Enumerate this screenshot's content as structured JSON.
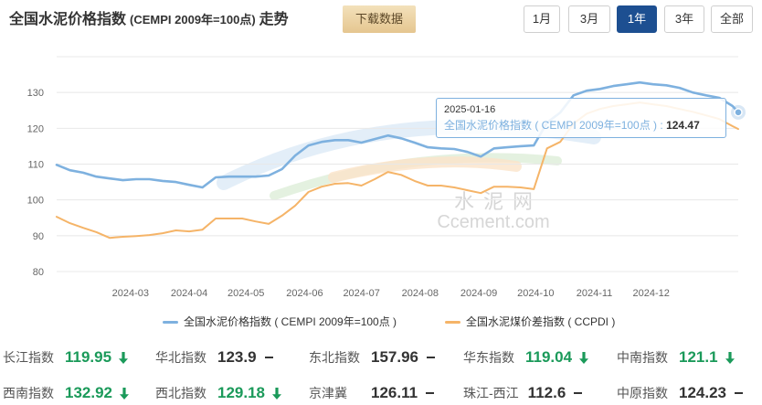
{
  "header": {
    "title_main": "全国水泥价格指数",
    "title_sub": "(CEMPI 2009年=100点)",
    "title_suffix": "走势",
    "download_label": "下载数据",
    "ranges": [
      {
        "label": "1月"
      },
      {
        "label": "3月"
      },
      {
        "label": "1年",
        "selected": true
      },
      {
        "label": "3年"
      },
      {
        "label": "全部"
      }
    ]
  },
  "colors": {
    "accent": "#1d4f91",
    "series": [
      "#7eb1df",
      "#f5b468"
    ],
    "down": "#1b9a5a",
    "flat": "#333333",
    "grid": "#e8e8e8"
  },
  "chart_data": {
    "type": "line",
    "ylim": [
      80,
      140
    ],
    "yticks": [
      80,
      90,
      100,
      110,
      120,
      130
    ],
    "xticks": [
      "2024-03",
      "2024-04",
      "2024-05",
      "2024-06",
      "2024-07",
      "2024-08",
      "2024-09",
      "2024-10",
      "2024-11",
      "2024-12"
    ],
    "grid": true,
    "legend_position": "bottom",
    "x": [
      "2024-01-22",
      "2024-01-29",
      "2024-02-05",
      "2024-02-12",
      "2024-02-19",
      "2024-02-26",
      "2024-03-04",
      "2024-03-11",
      "2024-03-18",
      "2024-03-25",
      "2024-04-01",
      "2024-04-08",
      "2024-04-15",
      "2024-04-22",
      "2024-04-29",
      "2024-05-06",
      "2024-05-13",
      "2024-05-20",
      "2024-05-27",
      "2024-06-03",
      "2024-06-10",
      "2024-06-17",
      "2024-06-24",
      "2024-07-01",
      "2024-07-08",
      "2024-07-15",
      "2024-07-22",
      "2024-07-29",
      "2024-08-05",
      "2024-08-12",
      "2024-08-19",
      "2024-08-26",
      "2024-09-02",
      "2024-09-09",
      "2024-09-16",
      "2024-09-23",
      "2024-09-30",
      "2024-10-07",
      "2024-10-14",
      "2024-10-21",
      "2024-10-28",
      "2024-11-04",
      "2024-11-11",
      "2024-11-18",
      "2024-11-25",
      "2024-12-02",
      "2024-12-09",
      "2024-12-16",
      "2024-12-23",
      "2024-12-30",
      "2025-01-06",
      "2025-01-13",
      "2025-01-16"
    ],
    "series": [
      {
        "name": "全国水泥价格指数 ( CEMPI 2009年=100点 )",
        "values": [
          109.8,
          108.3,
          107.6,
          106.5,
          106.0,
          105.5,
          105.8,
          105.8,
          105.3,
          105.0,
          104.2,
          103.5,
          106.3,
          106.5,
          106.5,
          106.5,
          106.8,
          108.6,
          112.4,
          115.2,
          116.2,
          116.7,
          116.7,
          116.0,
          117.0,
          118.0,
          117.2,
          116.0,
          114.7,
          114.4,
          114.2,
          113.4,
          112.1,
          114.4,
          114.7,
          115.0,
          115.2,
          121.6,
          124.4,
          129.2,
          130.5,
          131.0,
          131.8,
          132.3,
          132.8,
          132.3,
          132.0,
          131.3,
          130.0,
          129.2,
          128.5,
          126.2,
          124.47
        ]
      },
      {
        "name": "全国水泥煤价差指数 ( CCPDI )",
        "values": [
          95.3,
          93.5,
          92.2,
          91.0,
          89.4,
          89.7,
          89.9,
          90.2,
          90.7,
          91.5,
          91.2,
          91.7,
          94.8,
          94.8,
          94.8,
          94.0,
          93.3,
          95.6,
          98.4,
          102.2,
          103.7,
          104.5,
          104.7,
          104.0,
          105.8,
          107.8,
          107.0,
          105.3,
          104.0,
          104.0,
          103.5,
          102.7,
          101.9,
          103.7,
          103.7,
          103.5,
          103.0,
          114.4,
          116.2,
          121.3,
          124.1,
          125.4,
          126.2,
          126.7,
          127.2,
          126.7,
          126.2,
          125.4,
          124.6,
          123.6,
          122.6,
          120.6,
          119.8
        ]
      }
    ]
  },
  "tooltip": {
    "date": "2025-01-16",
    "series_name": "全国水泥价格指数 ( CEMPI 2009年=100点 )",
    "separator": " : ",
    "value": "124.47"
  },
  "watermark": {
    "cn": "水泥网",
    "en": "Ccement.com"
  },
  "indices": [
    [
      {
        "name": "长江指数",
        "value": "119.95",
        "trend": "arrow-down-icon"
      },
      {
        "name": "华北指数",
        "value": "123.9",
        "trend": "dash-icon"
      },
      {
        "name": "东北指数",
        "value": "157.96",
        "trend": "dash-icon"
      },
      {
        "name": "华东指数",
        "value": "119.04",
        "trend": "arrow-down-icon"
      },
      {
        "name": "中南指数",
        "value": "121.1",
        "trend": "arrow-down-icon"
      }
    ],
    [
      {
        "name": "西南指数",
        "value": "132.92",
        "trend": "arrow-down-icon"
      },
      {
        "name": "西北指数",
        "value": "129.18",
        "trend": "arrow-down-icon"
      },
      {
        "name": "京津冀",
        "value": "126.11",
        "trend": "dash-icon"
      },
      {
        "name": "珠江-西江",
        "value": "112.6",
        "trend": "dash-icon"
      },
      {
        "name": "中原指数",
        "value": "124.23",
        "trend": "dash-icon"
      }
    ]
  ]
}
